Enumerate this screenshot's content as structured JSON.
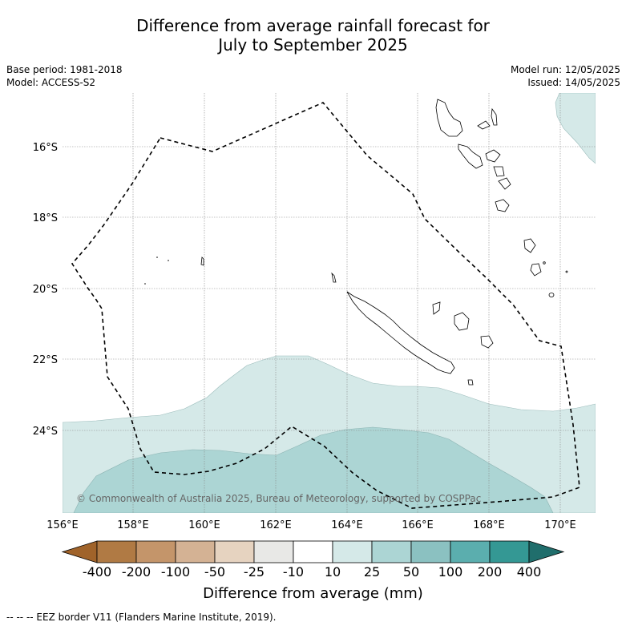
{
  "header": {
    "title_line1": "Difference from average rainfall forecast for",
    "title_line2": "July to September 2025",
    "base_period": "Base period: 1981-2018",
    "model": "Model: ACCESS-S2",
    "model_run": "Model run: 12/05/2025",
    "issued": "Issued: 14/05/2025"
  },
  "map": {
    "lat_labels": [
      "16°S",
      "18°S",
      "20°S",
      "22°S",
      "24°S"
    ],
    "lon_labels": [
      "156°E",
      "158°E",
      "160°E",
      "162°E",
      "164°E",
      "166°E",
      "168°E",
      "170°E"
    ],
    "credit": "© Commonwealth of Australia 2025, Bureau of Meteorology, supported by COSPPac",
    "land_color": "#ffffff",
    "eez_line_color": "#000000"
  },
  "colorbar": {
    "title": "Difference from average (mm)",
    "tick_labels": [
      "-400",
      "-200",
      "-100",
      "-50",
      "-25",
      "-10",
      "10",
      "25",
      "50",
      "100",
      "200",
      "400"
    ],
    "colors": [
      "#a0632a",
      "#b07a44",
      "#c4956a",
      "#d4b294",
      "#e6d3c0",
      "#e8e8e6",
      "#ffffff",
      "#d5e9e8",
      "#acd5d4",
      "#8bc1c1",
      "#5baeae",
      "#349894",
      "#206e6c"
    ]
  },
  "footnote": "--  --  -- EEZ border V11 (Flanders Marine Institute, 2019)."
}
